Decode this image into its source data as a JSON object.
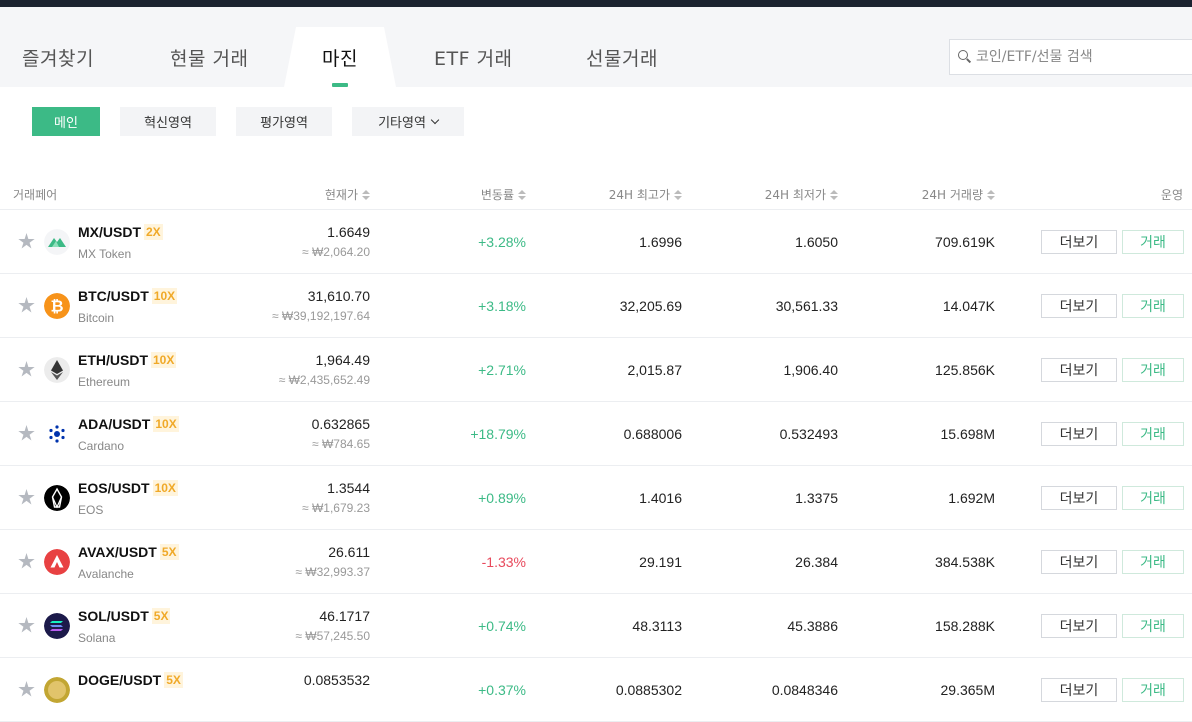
{
  "nav": {
    "tabs": [
      {
        "label": "즐겨찾기"
      },
      {
        "label": "현물 거래"
      },
      {
        "label": "마진"
      },
      {
        "label": "ETF 거래"
      },
      {
        "label": "선물거래"
      }
    ],
    "active_tab": 2,
    "search_placeholder": "코인/ETF/선물 검색"
  },
  "filters": [
    {
      "label": "메인"
    },
    {
      "label": "혁신영역"
    },
    {
      "label": "평가영역"
    },
    {
      "label": "기타영역"
    }
  ],
  "table": {
    "headers": {
      "pair": "거래페어",
      "price": "현재가",
      "change": "변동률",
      "high": "24H 최고가",
      "low": "24H 최저가",
      "volume": "24H 거래량",
      "action": "운영"
    },
    "more_label": "더보기",
    "trade_label": "거래",
    "rows": [
      {
        "pair": "MX/USDT",
        "lev": "2X",
        "name": "MX Token",
        "price": "1.6649",
        "krw": "≈ ₩2,064.20",
        "change": "+3.28%",
        "dir": "up",
        "high": "1.6996",
        "low": "1.6050",
        "volume": "709.619K",
        "icon_color": "#3cba86"
      },
      {
        "pair": "BTC/USDT",
        "lev": "10X",
        "name": "Bitcoin",
        "price": "31,610.70",
        "krw": "≈ ₩39,192,197.64",
        "change": "+3.18%",
        "dir": "up",
        "high": "32,205.69",
        "low": "30,561.33",
        "volume": "14.047K",
        "icon_color": "#f7931a"
      },
      {
        "pair": "ETH/USDT",
        "lev": "10X",
        "name": "Ethereum",
        "price": "1,964.49",
        "krw": "≈ ₩2,435,652.49",
        "change": "+2.71%",
        "dir": "up",
        "high": "2,015.87",
        "low": "1,906.40",
        "volume": "125.856K",
        "icon_color": "#ececec"
      },
      {
        "pair": "ADA/USDT",
        "lev": "10X",
        "name": "Cardano",
        "price": "0.632865",
        "krw": "≈ ₩784.65",
        "change": "+18.79%",
        "dir": "up",
        "high": "0.688006",
        "low": "0.532493",
        "volume": "15.698M",
        "icon_color": "#ffffff"
      },
      {
        "pair": "EOS/USDT",
        "lev": "10X",
        "name": "EOS",
        "price": "1.3544",
        "krw": "≈ ₩1,679.23",
        "change": "+0.89%",
        "dir": "up",
        "high": "1.4016",
        "low": "1.3375",
        "volume": "1.692M",
        "icon_color": "#000000"
      },
      {
        "pair": "AVAX/USDT",
        "lev": "5X",
        "name": "Avalanche",
        "price": "26.611",
        "krw": "≈ ₩32,993.37",
        "change": "-1.33%",
        "dir": "down",
        "high": "29.191",
        "low": "26.384",
        "volume": "384.538K",
        "icon_color": "#e84142"
      },
      {
        "pair": "SOL/USDT",
        "lev": "5X",
        "name": "Solana",
        "price": "46.1717",
        "krw": "≈ ₩57,245.50",
        "change": "+0.74%",
        "dir": "up",
        "high": "48.3113",
        "low": "45.3886",
        "volume": "158.288K",
        "icon_color": "#1c1a4a"
      },
      {
        "pair": "DOGE/USDT",
        "lev": "5X",
        "name": "",
        "price": "0.0853532",
        "krw": "",
        "change": "+0.37%",
        "dir": "up",
        "high": "0.0885302",
        "low": "0.0848346",
        "volume": "29.365M",
        "icon_color": "#c2a633"
      }
    ]
  }
}
